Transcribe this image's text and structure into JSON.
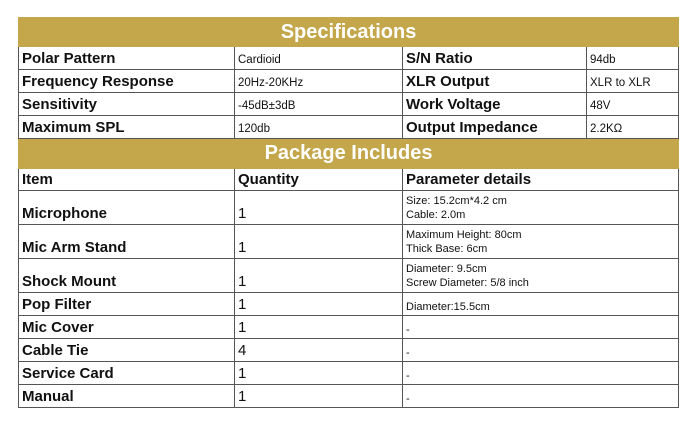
{
  "specifications": {
    "title": "Specifications",
    "rows": [
      {
        "label1": "Polar Pattern",
        "value1": "Cardioid",
        "label2": "S/N Ratio",
        "value2": "94db"
      },
      {
        "label1": "Frequency Response",
        "value1": "20Hz-20KHz",
        "label2": "XLR Output",
        "value2": "XLR to XLR"
      },
      {
        "label1": "Sensitivity",
        "value1": "-45dB±3dB",
        "label2": "Work Voltage",
        "value2": "48V"
      },
      {
        "label1": "Maximum SPL",
        "value1": "120db",
        "label2": "Output Impedance",
        "value2": "2.2KΩ"
      }
    ]
  },
  "package": {
    "title": "Package Includes",
    "headers": [
      "Item",
      "Quantity",
      "Parameter details"
    ],
    "rows": [
      {
        "item": "Microphone",
        "qty": "1",
        "d1": "Size: 15.2cm*4.2 cm",
        "d2": "Cable: 2.0m"
      },
      {
        "item": "Mic Arm Stand",
        "qty": "1",
        "d1": "Maximum Height: 80cm",
        "d2": "Thick Base: 6cm"
      },
      {
        "item": "Shock Mount",
        "qty": "1",
        "d1": "Diameter: 9.5cm",
        "d2": "Screw Diameter: 5/8 inch"
      },
      {
        "item": "Pop Filter",
        "qty": "1",
        "d1": "Diameter:15.5cm"
      },
      {
        "item": "Mic Cover",
        "qty": "1",
        "d1": "-"
      },
      {
        "item": "Cable Tie",
        "qty": "4",
        "d1": "-"
      },
      {
        "item": "Service Card",
        "qty": "1",
        "d1": "-"
      },
      {
        "item": "Manual",
        "qty": "1",
        "d1": "-"
      }
    ]
  },
  "colors": {
    "header_bg": "#c4a74a",
    "header_text": "#ffffff"
  }
}
